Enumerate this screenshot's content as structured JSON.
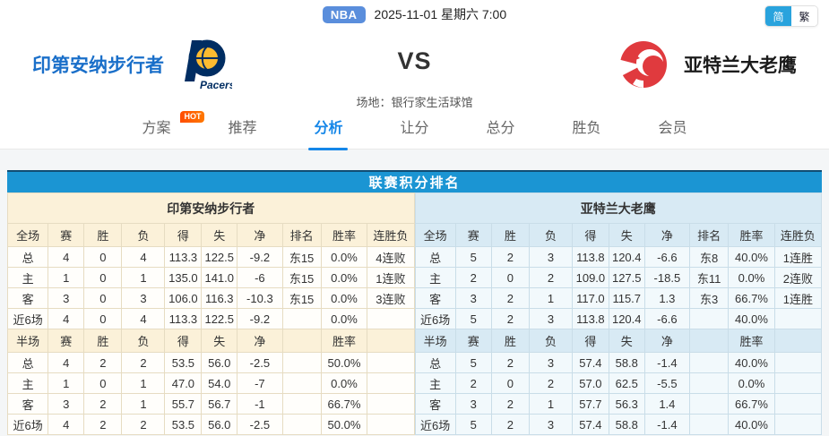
{
  "colors": {
    "accent_blue": "#1b95d3",
    "badge_blue": "#5a8edc",
    "lang_active_blue": "#29a3dd",
    "tab_active": "#1486e8",
    "hot_orange": "#ff7800",
    "home_name_blue": "#1a6fc9",
    "cream_header": "#fbf1d9",
    "cream_border": "#e6dcc2",
    "blue_header": "#d8eaf4",
    "blue_cell": "#f2f9fc",
    "blue_border": "#c9dde8",
    "num_red": "#ff3333",
    "streak_win_red": "#ff3333",
    "streak_lose_green": "#43a047",
    "pacers_navy": "#002d62",
    "pacers_gold": "#fdbb30",
    "hawks_red": "#e03a3e"
  },
  "topbar": {
    "league_badge": "NBA",
    "datetime": "2025-11-01 星期六 7:00",
    "lang_simplified": "简",
    "lang_traditional": "繁"
  },
  "header": {
    "home_team": "印第安纳步行者",
    "away_team": "亚特兰大老鹰",
    "vs": "VS",
    "venue": "场地：银行家生活球馆",
    "home_logo_text": "Pacers"
  },
  "nav": {
    "hot_label": "HOT",
    "tabs": [
      {
        "name": "plan",
        "label": "方案",
        "hot": true,
        "active": false
      },
      {
        "name": "recommend",
        "label": "推荐",
        "hot": false,
        "active": false
      },
      {
        "name": "analysis",
        "label": "分析",
        "hot": false,
        "active": true
      },
      {
        "name": "handicap",
        "label": "让分",
        "hot": false,
        "active": false
      },
      {
        "name": "totals",
        "label": "总分",
        "hot": false,
        "active": false
      },
      {
        "name": "winloss",
        "label": "胜负",
        "hot": false,
        "active": false
      },
      {
        "name": "member",
        "label": "会员",
        "hot": false,
        "active": false
      }
    ]
  },
  "standings": {
    "title": "联赛积分排名",
    "teams": [
      {
        "side": "home",
        "name": "印第安纳步行者",
        "theme": "cream",
        "full": {
          "headers": [
            "全场",
            "赛",
            "胜",
            "负",
            "得",
            "失",
            "净",
            "排名",
            "胜率",
            "连胜负"
          ],
          "rows": [
            [
              "总",
              "4",
              "0",
              "4",
              "113.3",
              "122.5",
              "-9.2",
              "东15",
              "0.0%",
              "4连败"
            ],
            [
              "主",
              "1",
              "0",
              "1",
              "135.0",
              "141.0",
              "-6",
              "东15",
              "0.0%",
              "1连败"
            ],
            [
              "客",
              "3",
              "0",
              "3",
              "106.0",
              "116.3",
              "-10.3",
              "东15",
              "0.0%",
              "3连败"
            ],
            [
              "近6场",
              "4",
              "0",
              "4",
              "113.3",
              "122.5",
              "-9.2",
              "",
              "0.0%",
              ""
            ]
          ]
        },
        "half": {
          "headers": [
            "半场",
            "赛",
            "胜",
            "负",
            "得",
            "失",
            "净",
            "",
            "胜率",
            ""
          ],
          "rows": [
            [
              "总",
              "4",
              "2",
              "2",
              "53.5",
              "56.0",
              "-2.5",
              "",
              "50.0%",
              ""
            ],
            [
              "主",
              "1",
              "0",
              "1",
              "47.0",
              "54.0",
              "-7",
              "",
              "0.0%",
              ""
            ],
            [
              "客",
              "3",
              "2",
              "1",
              "55.7",
              "56.7",
              "-1",
              "",
              "66.7%",
              ""
            ],
            [
              "近6场",
              "4",
              "2",
              "2",
              "53.5",
              "56.0",
              "-2.5",
              "",
              "50.0%",
              ""
            ]
          ]
        }
      },
      {
        "side": "away",
        "name": "亚特兰大老鹰",
        "theme": "bluet",
        "full": {
          "headers": [
            "全场",
            "赛",
            "胜",
            "负",
            "得",
            "失",
            "净",
            "排名",
            "胜率",
            "连胜负"
          ],
          "rows": [
            [
              "总",
              "5",
              "2",
              "3",
              "113.8",
              "120.4",
              "-6.6",
              "东8",
              "40.0%",
              "1连胜"
            ],
            [
              "主",
              "2",
              "0",
              "2",
              "109.0",
              "127.5",
              "-18.5",
              "东11",
              "0.0%",
              "2连败"
            ],
            [
              "客",
              "3",
              "2",
              "1",
              "117.0",
              "115.7",
              "1.3",
              "东3",
              "66.7%",
              "1连胜"
            ],
            [
              "近6场",
              "5",
              "2",
              "3",
              "113.8",
              "120.4",
              "-6.6",
              "",
              "40.0%",
              ""
            ]
          ]
        },
        "half": {
          "headers": [
            "半场",
            "赛",
            "胜",
            "负",
            "得",
            "失",
            "净",
            "",
            "胜率",
            ""
          ],
          "rows": [
            [
              "总",
              "5",
              "2",
              "3",
              "57.4",
              "58.8",
              "-1.4",
              "",
              "40.0%",
              ""
            ],
            [
              "主",
              "2",
              "0",
              "2",
              "57.0",
              "62.5",
              "-5.5",
              "",
              "0.0%",
              ""
            ],
            [
              "客",
              "3",
              "2",
              "1",
              "57.7",
              "56.3",
              "1.4",
              "",
              "66.7%",
              ""
            ],
            [
              "近6场",
              "5",
              "2",
              "3",
              "57.4",
              "58.8",
              "-1.4",
              "",
              "40.0%",
              ""
            ]
          ]
        }
      }
    ]
  }
}
